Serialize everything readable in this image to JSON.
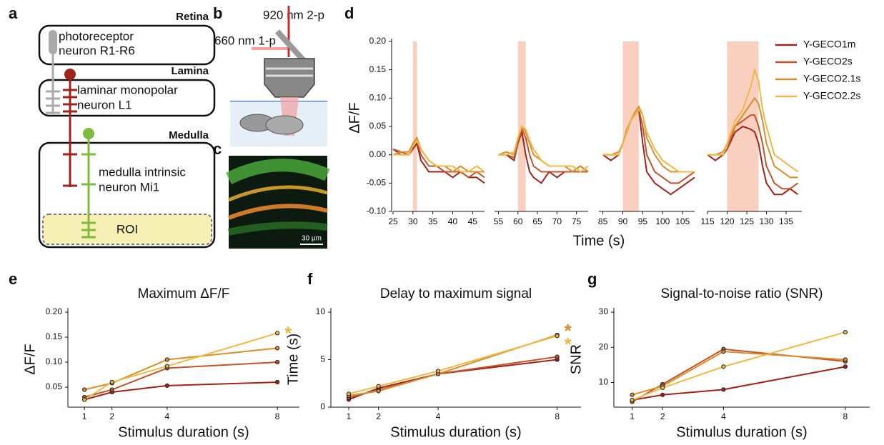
{
  "panel_labels": [
    "a",
    "b",
    "c",
    "d",
    "e",
    "f",
    "g"
  ],
  "diagram_a": {
    "retina": "Retina",
    "photoreceptor": [
      "photoreceptor",
      "neuron R1-R6"
    ],
    "lamina": "Lamina",
    "lamina_neuron": [
      "laminar monopolar",
      "neuron L1"
    ],
    "medulla": "Medulla",
    "medulla_neuron": [
      "medulla intrinsic",
      "neuron Mi1"
    ],
    "roi": "ROI"
  },
  "diagram_b": {
    "laser_2p": "920 nm 2-p",
    "laser_1p": "660 nm 1-p"
  },
  "image_c": {
    "scale_bar": "30 μm"
  },
  "chart_data": [
    {
      "type": "line",
      "ylabel": "ΔF/F",
      "xlabel": "Time (s)",
      "ylim": [
        -0.1,
        0.2
      ],
      "yticks": [
        {
          "value": 0.2,
          "label": "0.20"
        },
        0.15,
        {
          "value": 0.1,
          "label": "0.10"
        },
        0.05,
        {
          "value": 0,
          "label": "0.00"
        },
        -0.05,
        {
          "value": -0.1,
          "label": "-0.10"
        }
      ],
      "series": [
        {
          "name": "Y-GECO1m",
          "color": "#a0231c"
        },
        {
          "name": "Y-GECO2s",
          "color": "#c0552c"
        },
        {
          "name": "Y-GECO2.1s",
          "color": "#d98e2c"
        },
        {
          "name": "Y-GECO2.2s",
          "color": "#f0b845"
        }
      ],
      "segments": [
        {
          "xlim": [
            25,
            48
          ],
          "xticks": [
            25,
            30,
            35,
            40,
            45
          ],
          "stimulus": [
            30,
            31
          ],
          "x": [
            25,
            27,
            29,
            30,
            31,
            32,
            34,
            36,
            38,
            40,
            42,
            44,
            46,
            48
          ],
          "values": [
            [
              0.01,
              0.0,
              0.0,
              0.01,
              0.02,
              -0.01,
              -0.03,
              -0.03,
              -0.03,
              -0.04,
              -0.03,
              -0.04,
              -0.04,
              -0.05
            ],
            [
              0.01,
              0.005,
              0.0,
              0.015,
              0.025,
              0.0,
              -0.02,
              -0.02,
              -0.03,
              -0.03,
              -0.03,
              -0.04,
              -0.03,
              -0.04
            ],
            [
              0.0,
              0.005,
              0.005,
              0.02,
              0.03,
              0.01,
              -0.01,
              -0.02,
              -0.02,
              -0.03,
              -0.02,
              -0.03,
              -0.03,
              -0.03
            ],
            [
              0.0,
              0.0,
              0.0,
              0.015,
              0.025,
              0.01,
              -0.01,
              -0.02,
              -0.02,
              -0.02,
              -0.03,
              -0.03,
              -0.02,
              -0.03
            ]
          ]
        },
        {
          "xlim": [
            54,
            78
          ],
          "xticks": [
            55,
            60,
            65,
            70,
            75
          ],
          "stimulus": [
            60,
            62
          ],
          "x": [
            55,
            57,
            59,
            60,
            61,
            62,
            63,
            64,
            66,
            68,
            70,
            72,
            74,
            76,
            78
          ],
          "values": [
            [
              0.0,
              0.0,
              -0.01,
              0.02,
              0.04,
              0.0,
              -0.03,
              -0.04,
              -0.05,
              -0.03,
              -0.04,
              -0.03,
              -0.03,
              -0.02,
              -0.03
            ],
            [
              0.0,
              0.0,
              -0.005,
              0.02,
              0.045,
              0.03,
              0.0,
              -0.02,
              -0.03,
              -0.03,
              -0.03,
              -0.03,
              -0.03,
              -0.03,
              -0.03
            ],
            [
              0.0,
              0.005,
              0.0,
              0.03,
              0.05,
              0.04,
              0.02,
              0.0,
              -0.01,
              -0.02,
              -0.02,
              -0.02,
              -0.03,
              -0.02,
              -0.03
            ],
            [
              0.0,
              0.0,
              0.005,
              0.03,
              0.05,
              0.045,
              0.025,
              0.01,
              -0.01,
              -0.02,
              -0.02,
              -0.02,
              -0.02,
              -0.03,
              -0.02
            ]
          ]
        },
        {
          "xlim": [
            84,
            108
          ],
          "xticks": [
            85,
            90,
            95,
            100,
            105
          ],
          "stimulus": [
            90,
            94
          ],
          "x": [
            85,
            87,
            89,
            90,
            91,
            92,
            93,
            94,
            95,
            96,
            98,
            100,
            102,
            104,
            106,
            108
          ],
          "values": [
            [
              0.0,
              -0.01,
              0.0,
              0.02,
              0.04,
              0.06,
              0.07,
              0.08,
              0.02,
              -0.03,
              -0.05,
              -0.06,
              -0.07,
              -0.06,
              -0.05,
              -0.04
            ],
            [
              0.0,
              0.0,
              0.0,
              0.02,
              0.04,
              0.06,
              0.07,
              0.08,
              0.05,
              0.0,
              -0.03,
              -0.04,
              -0.05,
              -0.05,
              -0.04,
              -0.03
            ],
            [
              0.0,
              0.0,
              0.005,
              0.02,
              0.045,
              0.06,
              0.075,
              0.085,
              0.07,
              0.03,
              0.0,
              -0.02,
              -0.03,
              -0.03,
              -0.03,
              -0.03
            ],
            [
              0.0,
              0.0,
              0.0,
              0.02,
              0.04,
              0.06,
              0.07,
              0.08,
              0.07,
              0.04,
              0.01,
              -0.01,
              -0.02,
              -0.03,
              -0.03,
              -0.03
            ]
          ]
        },
        {
          "xlim": [
            115,
            139
          ],
          "xticks": [
            115,
            120,
            125,
            130,
            135
          ],
          "stimulus": [
            120,
            128
          ],
          "x": [
            115,
            117,
            119,
            120,
            122,
            124,
            126,
            127,
            128,
            129,
            130,
            132,
            134,
            136,
            138
          ],
          "values": [
            [
              0.0,
              -0.01,
              0.0,
              0.01,
              0.04,
              0.05,
              0.045,
              0.04,
              0.02,
              -0.02,
              -0.05,
              -0.07,
              -0.07,
              -0.06,
              -0.07
            ],
            [
              0.0,
              0.0,
              0.0,
              0.01,
              0.05,
              0.06,
              0.07,
              0.07,
              0.05,
              0.02,
              -0.02,
              -0.05,
              -0.06,
              -0.06,
              -0.05
            ],
            [
              0.0,
              0.0,
              0.005,
              0.02,
              0.05,
              0.07,
              0.09,
              0.1,
              0.09,
              0.06,
              0.02,
              -0.02,
              -0.03,
              -0.04,
              -0.04
            ],
            [
              0.0,
              0.0,
              0.0,
              0.02,
              0.06,
              0.08,
              0.12,
              0.15,
              0.13,
              0.08,
              0.05,
              0.0,
              -0.01,
              -0.02,
              -0.03
            ]
          ]
        }
      ]
    },
    {
      "type": "line",
      "title": "Maximum  ΔF/F",
      "ylabel": "ΔF/F",
      "xlabel": "Stimulus duration (s)",
      "x": [
        1,
        2,
        4,
        8
      ],
      "xlim": [
        0.4,
        8.8
      ],
      "xticks": [
        1,
        2,
        4,
        8
      ],
      "ylim": [
        0.01,
        0.2
      ],
      "yticks": [
        0.05,
        {
          "value": 0.1,
          "label": "0.10"
        },
        0.15,
        {
          "value": 0.2,
          "label": "0.20"
        }
      ],
      "series": [
        {
          "name": "Y-GECO1m",
          "color": "#a0231c",
          "values": [
            0.025,
            0.04,
            0.053,
            0.06
          ]
        },
        {
          "name": "Y-GECO2s",
          "color": "#c0552c",
          "values": [
            0.03,
            0.045,
            0.088,
            0.1
          ]
        },
        {
          "name": "Y-GECO2.1s",
          "color": "#d98e2c",
          "values": [
            0.045,
            0.058,
            0.105,
            0.128
          ]
        },
        {
          "name": "Y-GECO2.2s",
          "color": "#f0b845",
          "values": [
            0.025,
            0.06,
            0.092,
            0.158
          ]
        }
      ],
      "annotations": [
        {
          "text": "*",
          "series": 3
        }
      ]
    },
    {
      "type": "line",
      "title": "Delay to maximum signal",
      "ylabel": "Time (s)",
      "xlabel": "Stimulus duration (s)",
      "x": [
        1,
        2,
        4,
        8
      ],
      "xlim": [
        0.4,
        8.8
      ],
      "xticks": [
        1,
        2,
        4,
        8
      ],
      "ylim": [
        0,
        10
      ],
      "yticks": [
        0,
        5,
        10
      ],
      "series": [
        {
          "name": "Y-GECO1m",
          "color": "#a0231c",
          "values": [
            0.8,
            2.0,
            3.5,
            5.0
          ]
        },
        {
          "name": "Y-GECO2s",
          "color": "#c0552c",
          "values": [
            1.0,
            1.8,
            3.5,
            5.3
          ]
        },
        {
          "name": "Y-GECO2.1s",
          "color": "#d98e2c",
          "values": [
            1.2,
            1.7,
            3.5,
            7.6
          ]
        },
        {
          "name": "Y-GECO2.2s",
          "color": "#f0b845",
          "values": [
            1.4,
            2.2,
            3.8,
            7.5
          ]
        }
      ],
      "annotations": [
        {
          "text": "*",
          "series": 2
        },
        {
          "text": "*",
          "series": 3
        }
      ]
    },
    {
      "type": "line",
      "title": "Signal-to-noise ratio (SNR)",
      "ylabel": "SNR",
      "xlabel": "Stimulus duration (s)",
      "x": [
        1,
        2,
        4,
        8
      ],
      "xlim": [
        0.4,
        8.8
      ],
      "xticks": [
        1,
        2,
        4,
        8
      ],
      "ylim": [
        3,
        30
      ],
      "yticks": [
        10,
        20,
        30
      ],
      "series": [
        {
          "name": "Y-GECO1m",
          "color": "#a0231c",
          "values": [
            5,
            6.5,
            8,
            14.5
          ]
        },
        {
          "name": "Y-GECO2s",
          "color": "#c0552c",
          "values": [
            4.5,
            9.5,
            19.5,
            16
          ]
        },
        {
          "name": "Y-GECO2.1s",
          "color": "#d98e2c",
          "values": [
            6.5,
            9,
            18.8,
            16.5
          ]
        },
        {
          "name": "Y-GECO2.2s",
          "color": "#f0b845",
          "values": [
            5,
            8.5,
            14.5,
            24.3
          ]
        }
      ]
    }
  ]
}
